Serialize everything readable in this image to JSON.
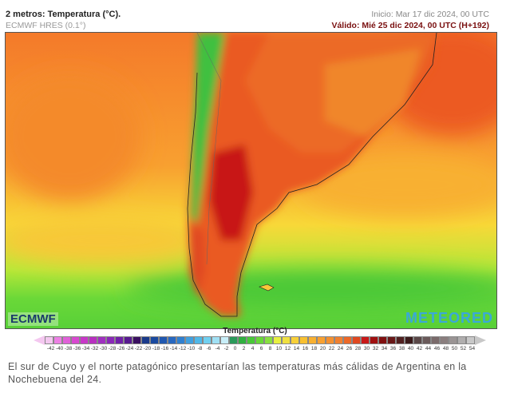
{
  "header": {
    "title": "2 metros: Temperatura (°C).",
    "model": "ECMWF HRES (0.1°)",
    "init": "Inicio: Mar 17 dic 2024, 00 UTC",
    "valid": "Válido: Mié 25 dic 2024, 00 UTC (H+192)"
  },
  "map": {
    "logo_left": "ECMWF",
    "logo_right": "METEORED"
  },
  "legend": {
    "title": "Temperatura (°C)",
    "ticks": [
      "-42",
      "-40",
      "-38",
      "-36",
      "-34",
      "-32",
      "-30",
      "-28",
      "-26",
      "-24",
      "-22",
      "-20",
      "-18",
      "-16",
      "-14",
      "-12",
      "-10",
      "-8",
      "-6",
      "-4",
      "-2",
      "0",
      "2",
      "4",
      "6",
      "8",
      "10",
      "12",
      "14",
      "16",
      "18",
      "20",
      "22",
      "24",
      "26",
      "28",
      "30",
      "32",
      "34",
      "36",
      "38",
      "40",
      "42",
      "44",
      "46",
      "48",
      "50",
      "52",
      "54"
    ],
    "colors": [
      "#f4c8f0",
      "#ec80e4",
      "#e060d8",
      "#d848d0",
      "#c838c8",
      "#b830c0",
      "#a030c0",
      "#8a28b8",
      "#7020a8",
      "#581a90",
      "#3a1060",
      "#1a3a8a",
      "#1a4aa0",
      "#2058b0",
      "#2868c0",
      "#3080d0",
      "#40a0e0",
      "#50b8e8",
      "#70d0f0",
      "#a0e0f4",
      "#c8eef8",
      "#2a9a5a",
      "#30b040",
      "#48c838",
      "#68d838",
      "#88e040",
      "#e8f040",
      "#f0e040",
      "#f8d038",
      "#f8c030",
      "#f8b030",
      "#f8a030",
      "#f49030",
      "#f08030",
      "#ec6828",
      "#e04820",
      "#c81818",
      "#a01010",
      "#801010",
      "#681818",
      "#502020",
      "#3a1a1a",
      "#5a4848",
      "#6a5a5a",
      "#7a6a6a",
      "#8a7e7e",
      "#9a9494",
      "#b0aeae",
      "#c8c8c8"
    ]
  },
  "caption": "El sur de Cuyo y el norte patagónico presentarían las temperaturas más cálidas de Argentina en la Nochebuena del 24."
}
